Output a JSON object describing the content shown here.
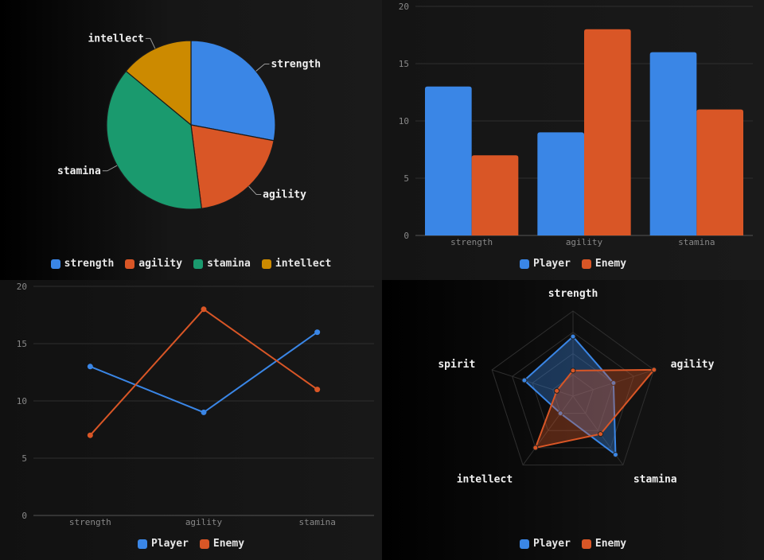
{
  "chart_data": [
    {
      "type": "pie",
      "categories": [
        "strength",
        "agility",
        "stamina",
        "intellect"
      ],
      "values": [
        28,
        20,
        38,
        14
      ],
      "colors": [
        "#3a86e6",
        "#d95626",
        "#1a9a6e",
        "#cc8a00"
      ],
      "legend": [
        "strength",
        "agility",
        "stamina",
        "intellect"
      ],
      "legend_position": "bottom"
    },
    {
      "type": "bar",
      "categories": [
        "strength",
        "agility",
        "stamina"
      ],
      "series": [
        {
          "name": "Player",
          "values": [
            13,
            9,
            16
          ],
          "color": "#3a86e6"
        },
        {
          "name": "Enemy",
          "values": [
            7,
            18,
            11
          ],
          "color": "#d95626"
        }
      ],
      "ylim": [
        0,
        20
      ],
      "yticks": [
        "0",
        "5",
        "10",
        "15",
        "20"
      ],
      "grid": true,
      "legend_position": "bottom"
    },
    {
      "type": "line",
      "categories": [
        "strength",
        "agility",
        "stamina"
      ],
      "series": [
        {
          "name": "Player",
          "values": [
            13,
            9,
            16
          ],
          "color": "#3a86e6"
        },
        {
          "name": "Enemy",
          "values": [
            7,
            18,
            11
          ],
          "color": "#d95626"
        }
      ],
      "ylim": [
        0,
        20
      ],
      "yticks": [
        "0",
        "5",
        "10",
        "15",
        "20"
      ],
      "grid": true,
      "legend_position": "bottom"
    },
    {
      "type": "radar",
      "categories": [
        "strength",
        "agility",
        "stamina",
        "intellect",
        "spirit"
      ],
      "series": [
        {
          "name": "Player",
          "values": [
            14,
            10,
            17,
            5,
            12
          ],
          "color": "#3a86e6"
        },
        {
          "name": "Enemy",
          "values": [
            6,
            20,
            11,
            15,
            4
          ],
          "color": "#d95626"
        }
      ],
      "rmax": 20,
      "grid": true,
      "legend_position": "bottom"
    }
  ]
}
